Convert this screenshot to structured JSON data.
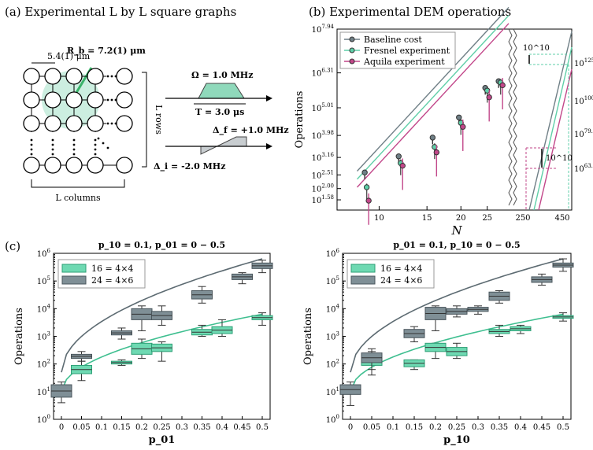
{
  "colors": {
    "gray": "#6f7f86",
    "teal": "#5fcfa8",
    "pink": "#c2478a",
    "green_fill": "#8fd9bb",
    "box_gray": "#7f8f96"
  },
  "panel_a": {
    "title": "(a) Experimental L by L square graphs",
    "spacing": "5.4(1) μm",
    "rb": "R_b = 7.2(1) μm",
    "rows_label": "L rows",
    "cols_label": "L columns",
    "omega": "Ω = 1.0 MHz",
    "time": "T = 3.0 μs",
    "delta_f": "Δ_f = +1.0 MHz",
    "delta_i": "Δ_i = -2.0 MHz"
  },
  "chart_data": [
    {
      "type": "scatter",
      "id": "panel_b",
      "title": "(b) Experimental DEM operations",
      "ylabel": "Operations",
      "xlabel": "N",
      "yscale": "log",
      "x_ticks": [
        "10",
        "15",
        "20",
        "25",
        "250",
        "450"
      ],
      "y_ticks_left": [
        "10^1.58",
        "10^2.00",
        "10^2.51",
        "10^3.16",
        "10^3.98",
        "10^5.01",
        "10^6.31",
        "10^7.94"
      ],
      "y_ticks_right": [
        "10^63.1",
        "10^79.4",
        "10^100",
        "10^125"
      ],
      "annotations": [
        "10^10",
        "10^10"
      ],
      "legend": [
        "Baseline cost",
        "Fresnel experiment",
        "Aquila experiment"
      ],
      "series": [
        {
          "name": "Baseline cost",
          "x": [
            9,
            12,
            16,
            20,
            25,
            28
          ],
          "y": [
            2.6,
            3.2,
            3.9,
            4.65,
            5.75,
            6.0
          ]
        },
        {
          "name": "Fresnel experiment",
          "x": [
            9,
            12,
            16,
            20,
            25,
            28
          ],
          "y": [
            2.05,
            2.95,
            3.55,
            4.45,
            5.65,
            5.95
          ]
        },
        {
          "name": "Aquila experiment",
          "x": [
            9,
            12,
            16,
            20,
            25,
            28
          ],
          "y": [
            1.55,
            2.85,
            3.35,
            4.3,
            5.4,
            5.85
          ]
        }
      ]
    },
    {
      "type": "box",
      "id": "panel_c_left",
      "panel_label": "(c)",
      "title": "p_10 = 0.1, p_01 = 0 − 0.5",
      "xlabel": "p_01",
      "ylabel": "Operations",
      "yscale": "log",
      "ylim_exp": [
        0,
        6
      ],
      "categories": [
        "0",
        "0.05",
        "0.1",
        "0.15",
        "0.2",
        "0.25",
        "0.3",
        "0.35",
        "0.4",
        "0.45",
        "0.5"
      ],
      "legend": [
        "16 = 4×4",
        "24 = 4×6"
      ],
      "series": [
        {
          "name": "16 = 4×4",
          "x": [
            0.05,
            0.15,
            0.2,
            0.25,
            0.35,
            0.4,
            0.5
          ],
          "q1": [
            1.65,
            2.0,
            2.35,
            2.45,
            3.05,
            3.1,
            3.6
          ],
          "q3": [
            1.95,
            2.1,
            2.75,
            2.72,
            3.25,
            3.35,
            3.75
          ],
          "min": [
            1.4,
            1.95,
            2.2,
            2.1,
            3.0,
            3.0,
            3.4
          ],
          "max": [
            2.1,
            2.15,
            2.9,
            2.8,
            3.4,
            3.6,
            3.85
          ]
        },
        {
          "name": "24 = 4×6",
          "x": [
            0,
            0.05,
            0.15,
            0.2,
            0.25,
            0.35,
            0.45,
            0.5
          ],
          "q1": [
            0.8,
            2.2,
            3.05,
            3.6,
            3.6,
            4.35,
            5.05,
            5.45
          ],
          "q3": [
            1.25,
            2.35,
            3.2,
            4.0,
            3.9,
            4.65,
            5.25,
            5.65
          ],
          "min": [
            0.6,
            2.1,
            2.9,
            3.2,
            3.4,
            4.2,
            4.9,
            5.3
          ],
          "max": [
            1.35,
            2.45,
            3.3,
            4.1,
            4.1,
            4.8,
            5.3,
            5.75
          ]
        }
      ]
    },
    {
      "type": "box",
      "id": "panel_c_right",
      "title": "p_01 = 0.1, p_10 = 0 − 0.5",
      "xlabel": "p_10",
      "ylabel": "Operations",
      "yscale": "log",
      "ylim_exp": [
        0,
        6
      ],
      "categories": [
        "0",
        "0.05",
        "0.1",
        "0.15",
        "0.2",
        "0.25",
        "0.3",
        "0.35",
        "0.4",
        "0.45",
        "0.5"
      ],
      "legend": [
        "16 = 4×4",
        "24 = 4×6"
      ],
      "series": [
        {
          "name": "16 = 4×4",
          "x": [
            0.05,
            0.15,
            0.2,
            0.25,
            0.35,
            0.4,
            0.5
          ],
          "q1": [
            1.95,
            1.9,
            2.45,
            2.3,
            3.1,
            3.2,
            3.65
          ],
          "q3": [
            2.2,
            2.15,
            2.75,
            2.6,
            3.25,
            3.35,
            3.75
          ],
          "min": [
            1.6,
            1.8,
            2.2,
            2.2,
            3.0,
            3.1,
            3.55
          ],
          "max": [
            2.55,
            2.15,
            2.75,
            2.75,
            3.4,
            3.4,
            3.85
          ]
        },
        {
          "name": "24 = 4×6",
          "x": [
            0,
            0.05,
            0.15,
            0.2,
            0.25,
            0.3,
            0.35,
            0.45,
            0.5
          ],
          "q1": [
            0.9,
            2.05,
            2.95,
            3.6,
            3.8,
            3.9,
            4.3,
            4.95,
            5.5
          ],
          "q3": [
            1.25,
            2.4,
            3.25,
            4.05,
            4.0,
            4.05,
            4.6,
            5.15,
            5.65
          ],
          "min": [
            0.5,
            1.8,
            2.8,
            3.2,
            3.7,
            3.8,
            4.2,
            4.85,
            5.35
          ],
          "max": [
            1.35,
            2.45,
            3.35,
            4.1,
            4.1,
            4.1,
            4.65,
            5.25,
            5.8
          ]
        }
      ]
    }
  ]
}
